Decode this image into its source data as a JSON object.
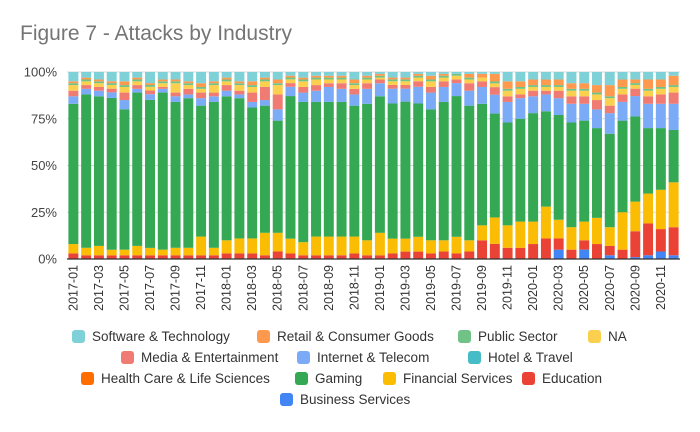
{
  "chart_data": {
    "type": "bar",
    "stacked": true,
    "normalized": true,
    "title": "Figure 7 - Attacks by Industry",
    "xlabel": "",
    "ylabel": "",
    "ylim": [
      0,
      100
    ],
    "y_ticks": [
      "0%",
      "25%",
      "50%",
      "75%",
      "100%"
    ],
    "grid": true,
    "legend_position": "bottom",
    "categories": [
      "2017-01",
      "2017-02",
      "2017-03",
      "2017-04",
      "2017-05",
      "2017-06",
      "2017-07",
      "2017-08",
      "2017-09",
      "2017-10",
      "2017-11",
      "2017-12",
      "2018-01",
      "2018-02",
      "2018-03",
      "2018-04",
      "2018-05",
      "2018-06",
      "2018-07",
      "2018-08",
      "2018-09",
      "2018-10",
      "2018-11",
      "2018-12",
      "2019-01",
      "2019-02",
      "2019-03",
      "2019-04",
      "2019-05",
      "2019-06",
      "2019-07",
      "2019-08",
      "2019-09",
      "2019-10",
      "2019-11",
      "2019-12",
      "2020-01",
      "2020-02",
      "2020-03",
      "2020-04",
      "2020-05",
      "2020-06",
      "2020-07",
      "2020-08",
      "2020-09",
      "2020-10",
      "2020-11",
      "2020-12"
    ],
    "x_tick_labels": [
      "2017-01",
      "",
      "2017-03",
      "",
      "2017-05",
      "",
      "2017-07",
      "",
      "2017-09",
      "",
      "2017-11",
      "",
      "2018-01",
      "",
      "2018-03",
      "",
      "2018-05",
      "",
      "2018-07",
      "",
      "2018-09",
      "",
      "2018-11",
      "",
      "2019-01",
      "",
      "2019-03",
      "",
      "2019-05",
      "",
      "2019-07",
      "",
      "2019-09",
      "",
      "2019-11",
      "",
      "2020-01",
      "",
      "2020-03",
      "",
      "2020-05",
      "",
      "2020-07",
      "",
      "2020-09",
      "",
      "2020-11",
      ""
    ],
    "series": [
      {
        "name": "Business Services",
        "color": "#4285f4",
        "values": [
          0,
          0,
          0,
          0,
          0,
          0,
          0,
          0,
          0,
          0,
          0,
          0,
          0,
          0,
          0,
          0,
          0,
          0,
          0,
          0,
          0,
          0,
          0,
          0,
          0,
          0,
          0,
          0,
          0,
          0,
          0,
          0,
          0,
          0,
          0,
          0,
          0,
          0,
          5,
          0,
          5,
          0,
          2,
          0,
          1,
          2,
          4,
          2
        ]
      },
      {
        "name": "Education",
        "color": "#ea4335",
        "values": [
          3,
          2,
          2,
          2,
          2,
          2,
          2,
          2,
          2,
          2,
          2,
          2,
          3,
          3,
          3,
          2,
          4,
          3,
          2,
          2,
          2,
          2,
          3,
          2,
          2,
          3,
          4,
          4,
          3,
          4,
          3,
          4,
          10,
          8,
          6,
          6,
          8,
          11,
          6,
          5,
          5,
          8,
          5,
          5,
          14,
          17,
          12,
          15
        ]
      },
      {
        "name": "Financial Services",
        "color": "#fbbc04",
        "values": [
          5,
          4,
          5,
          3,
          3,
          5,
          4,
          3,
          4,
          4,
          10,
          4,
          7,
          8,
          8,
          12,
          10,
          8,
          7,
          10,
          10,
          10,
          9,
          8,
          12,
          8,
          7,
          8,
          7,
          6,
          9,
          6,
          8,
          14,
          12,
          14,
          12,
          17,
          10,
          12,
          10,
          14,
          10,
          20,
          16,
          16,
          21,
          24
        ]
      },
      {
        "name": "Gaming",
        "color": "#34a853",
        "values": [
          75,
          82,
          80,
          82,
          75,
          82,
          80,
          84,
          78,
          80,
          70,
          78,
          77,
          75,
          70,
          68,
          60,
          77,
          75,
          72,
          72,
          72,
          70,
          73,
          73,
          73,
          74,
          72,
          70,
          74,
          76,
          72,
          65,
          55,
          55,
          55,
          58,
          51,
          56,
          56,
          54,
          48,
          50,
          49,
          46,
          35,
          33,
          28
        ]
      },
      {
        "name": "Health Care & Life Sciences",
        "color": "#ff6d01",
        "values": [
          0,
          0,
          0,
          0,
          0,
          0,
          0,
          0,
          0,
          0,
          0,
          0,
          0,
          0,
          0,
          0,
          0,
          0,
          0,
          0,
          0,
          0,
          0,
          0,
          0,
          0,
          0,
          0,
          0,
          0,
          0,
          0,
          0,
          0,
          0,
          0,
          0,
          0,
          0,
          0,
          0,
          0,
          0,
          0,
          0,
          0,
          0,
          0
        ]
      },
      {
        "name": "Hotel & Travel",
        "color": "#46bdc6",
        "values": [
          0,
          0,
          0,
          0,
          0,
          0,
          0,
          0,
          0,
          0,
          0,
          0,
          0,
          0,
          0,
          0,
          0,
          0,
          0,
          0,
          0,
          0,
          0,
          0,
          0,
          0,
          0,
          0,
          0,
          0,
          0,
          0,
          0,
          0,
          0,
          0,
          0,
          0,
          0,
          0,
          0,
          0,
          0,
          0,
          0,
          0,
          0,
          0
        ]
      },
      {
        "name": "Internet & Telecom",
        "color": "#7baaf7",
        "values": [
          4,
          3,
          3,
          3,
          5,
          2,
          3,
          2,
          3,
          2,
          4,
          3,
          3,
          2,
          3,
          3,
          6,
          5,
          5,
          6,
          8,
          7,
          6,
          8,
          7,
          8,
          7,
          9,
          9,
          8,
          7,
          8,
          9,
          10,
          11,
          11,
          9,
          9,
          9,
          10,
          9,
          10,
          11,
          10,
          11,
          13,
          13,
          14
        ]
      },
      {
        "name": "Media & Entertainment",
        "color": "#f07b72",
        "values": [
          3,
          2,
          2,
          2,
          4,
          2,
          2,
          1,
          2,
          3,
          3,
          2,
          3,
          2,
          5,
          7,
          8,
          2,
          3,
          3,
          2,
          3,
          3,
          3,
          2,
          2,
          2,
          3,
          3,
          3,
          2,
          4,
          3,
          4,
          3,
          2,
          3,
          2,
          4,
          4,
          4,
          5,
          4,
          4,
          4,
          4,
          5,
          6
        ]
      },
      {
        "name": "NA",
        "color": "#fcd04f",
        "values": [
          3,
          2,
          2,
          2,
          3,
          2,
          2,
          2,
          5,
          2,
          2,
          4,
          2,
          3,
          3,
          3,
          5,
          2,
          3,
          3,
          2,
          2,
          2,
          2,
          1,
          2,
          2,
          2,
          3,
          2,
          2,
          2,
          2,
          2,
          3,
          3,
          2,
          2,
          2,
          3,
          3,
          3,
          4,
          3,
          2,
          3,
          3,
          3
        ]
      },
      {
        "name": "Public Sector",
        "color": "#71c287",
        "values": [
          1,
          1,
          1,
          1,
          1,
          1,
          1,
          1,
          1,
          1,
          1,
          1,
          1,
          1,
          1,
          1,
          1,
          1,
          1,
          1,
          1,
          1,
          1,
          1,
          1,
          1,
          1,
          1,
          1,
          1,
          1,
          1,
          0,
          1,
          1,
          1,
          1,
          1,
          1,
          1,
          1,
          1,
          1,
          1,
          1,
          1,
          1,
          1
        ]
      },
      {
        "name": "Retail & Consumer Goods",
        "color": "#ff994d",
        "values": [
          1,
          1,
          1,
          1,
          2,
          1,
          1,
          1,
          1,
          1,
          2,
          1,
          1,
          1,
          2,
          1,
          2,
          1,
          1,
          1,
          1,
          1,
          2,
          1,
          1,
          1,
          1,
          1,
          2,
          1,
          0,
          2,
          2,
          4,
          4,
          3,
          3,
          3,
          3,
          3,
          3,
          4,
          6,
          4,
          2,
          5,
          4,
          5
        ]
      },
      {
        "name": "Software & Technology",
        "color": "#7ed1d7",
        "values": [
          5,
          3,
          4,
          5,
          5,
          3,
          6,
          4,
          4,
          5,
          6,
          5,
          3,
          5,
          5,
          3,
          4,
          2,
          3,
          2,
          2,
          2,
          4,
          2,
          1,
          3,
          3,
          1,
          2,
          1,
          1,
          1,
          1,
          1,
          5,
          5,
          4,
          4,
          4,
          6,
          6,
          7,
          7,
          4,
          4,
          4,
          4,
          2
        ]
      }
    ]
  },
  "legend_rows": [
    [
      "Software & Technology",
      "Retail & Consumer Goods",
      "Public Sector",
      "NA"
    ],
    [
      "Media & Entertainment",
      "Internet & Telecom",
      "Hotel & Travel"
    ],
    [
      "Health Care & Life Sciences",
      "Gaming",
      "Financial Services",
      "Education"
    ],
    [
      "Business Services"
    ]
  ]
}
